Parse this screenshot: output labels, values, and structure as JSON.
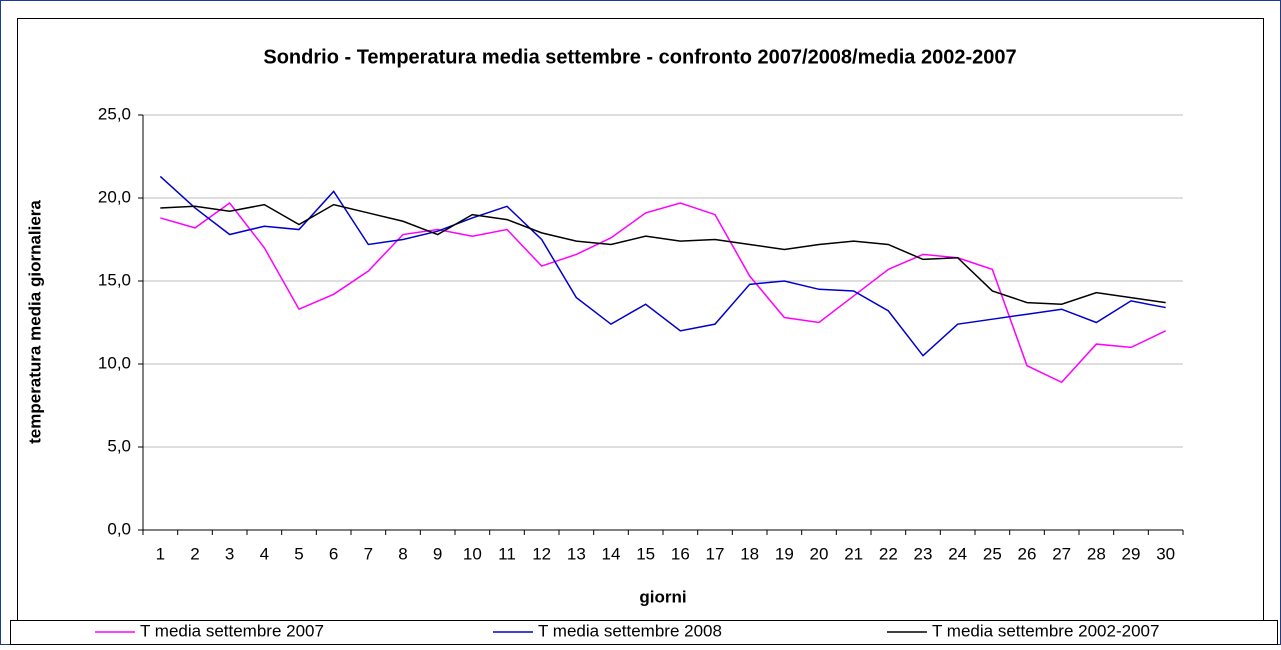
{
  "chart_data": {
    "type": "line",
    "title": "Sondrio - Temperatura media settembre - confronto 2007/2008/media 2002-2007",
    "x_label": "giorni",
    "y_label": "temperatura media giornaliera",
    "categories": [
      "1",
      "2",
      "3",
      "4",
      "5",
      "6",
      "7",
      "8",
      "9",
      "10",
      "11",
      "12",
      "13",
      "14",
      "15",
      "16",
      "17",
      "18",
      "19",
      "20",
      "21",
      "22",
      "23",
      "24",
      "25",
      "26",
      "27",
      "28",
      "29",
      "30"
    ],
    "series": [
      {
        "name": "T media settembre 2007",
        "color": "#ff00ff",
        "values": [
          18.8,
          18.2,
          19.7,
          17.0,
          13.3,
          14.2,
          15.6,
          17.8,
          18.1,
          17.7,
          18.1,
          15.9,
          16.6,
          17.6,
          19.1,
          19.7,
          19.0,
          15.3,
          12.8,
          12.5,
          14.1,
          15.7,
          16.6,
          16.4,
          15.7,
          9.9,
          8.9,
          11.2,
          11.0,
          12.0
        ]
      },
      {
        "name": "T media settembre 2008",
        "color": "#0000cc",
        "values": [
          21.3,
          19.4,
          17.8,
          18.3,
          18.1,
          20.4,
          17.2,
          17.5,
          18.0,
          18.8,
          19.5,
          17.5,
          14.0,
          12.4,
          13.6,
          12.0,
          12.4,
          14.8,
          15.0,
          14.5,
          14.4,
          13.2,
          10.5,
          12.4,
          12.7,
          13.0,
          13.3,
          12.5,
          13.8,
          13.4
        ]
      },
      {
        "name": "T media settembre 2002-2007",
        "color": "#000000",
        "values": [
          19.4,
          19.5,
          19.2,
          19.6,
          18.4,
          19.6,
          19.1,
          18.6,
          17.8,
          19.0,
          18.7,
          17.9,
          17.4,
          17.2,
          17.7,
          17.4,
          17.5,
          17.2,
          16.9,
          17.2,
          17.4,
          17.2,
          16.3,
          16.4,
          14.4,
          13.7,
          13.6,
          14.3,
          14.0,
          13.7
        ]
      }
    ],
    "ylim": [
      0,
      25
    ],
    "yticks": [
      {
        "value": 0,
        "label": "0,0"
      },
      {
        "value": 5,
        "label": "5,0"
      },
      {
        "value": 10,
        "label": "10,0"
      },
      {
        "value": 15,
        "label": "15,0"
      },
      {
        "value": 20,
        "label": "20,0"
      },
      {
        "value": 25,
        "label": "25,0"
      }
    ],
    "grid": true,
    "legend": "bottom"
  }
}
